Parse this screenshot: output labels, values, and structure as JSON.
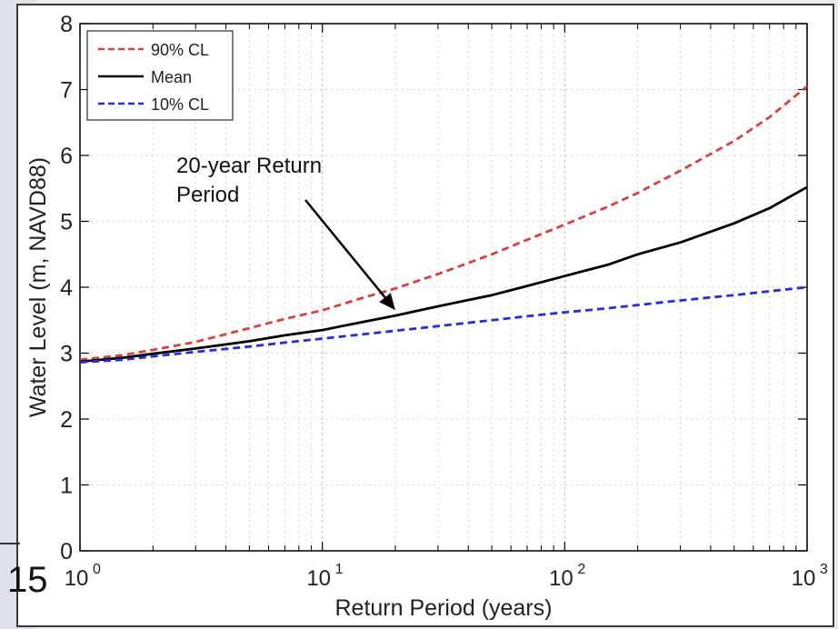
{
  "slide": {
    "number": "15"
  },
  "annotation": {
    "line1": "20-year Return",
    "line2": "Period"
  },
  "chart_data": {
    "type": "line",
    "title": "",
    "xlabel": "Return Period (years)",
    "ylabel": "Water Level (m, NAVD88)",
    "xscale": "log",
    "xlim": [
      1,
      1000
    ],
    "ylim": [
      0,
      8
    ],
    "grid": true,
    "legend_position": "top-left",
    "x_ticks": [
      {
        "base": "10",
        "exp": "0"
      },
      {
        "base": "10",
        "exp": "1"
      },
      {
        "base": "10",
        "exp": "2"
      },
      {
        "base": "10",
        "exp": "3"
      }
    ],
    "y_ticks": [
      "0",
      "1",
      "2",
      "3",
      "4",
      "5",
      "6",
      "7",
      "8"
    ],
    "x": [
      1,
      1.5,
      2,
      3,
      5,
      7,
      10,
      15,
      20,
      30,
      50,
      70,
      100,
      150,
      200,
      300,
      500,
      700,
      1000
    ],
    "series": [
      {
        "name": "90% CL",
        "color": "#d9413c",
        "dash": true,
        "values": [
          2.9,
          2.97,
          3.05,
          3.17,
          3.38,
          3.52,
          3.65,
          3.85,
          3.98,
          4.2,
          4.5,
          4.72,
          4.95,
          5.22,
          5.43,
          5.77,
          6.22,
          6.58,
          7.05
        ]
      },
      {
        "name": "Mean",
        "color": "#000000",
        "dash": false,
        "values": [
          2.87,
          2.93,
          2.99,
          3.07,
          3.18,
          3.27,
          3.35,
          3.48,
          3.57,
          3.71,
          3.88,
          4.02,
          4.17,
          4.34,
          4.5,
          4.68,
          4.97,
          5.2,
          5.52
        ]
      },
      {
        "name": "10% CL",
        "color": "#2a2ae0",
        "dash": true,
        "values": [
          2.86,
          2.9,
          2.95,
          3.02,
          3.1,
          3.16,
          3.22,
          3.29,
          3.34,
          3.41,
          3.5,
          3.56,
          3.62,
          3.68,
          3.73,
          3.8,
          3.88,
          3.94,
          4.0
        ]
      }
    ],
    "annotation_target": {
      "x": 20,
      "y": 3.57
    }
  }
}
